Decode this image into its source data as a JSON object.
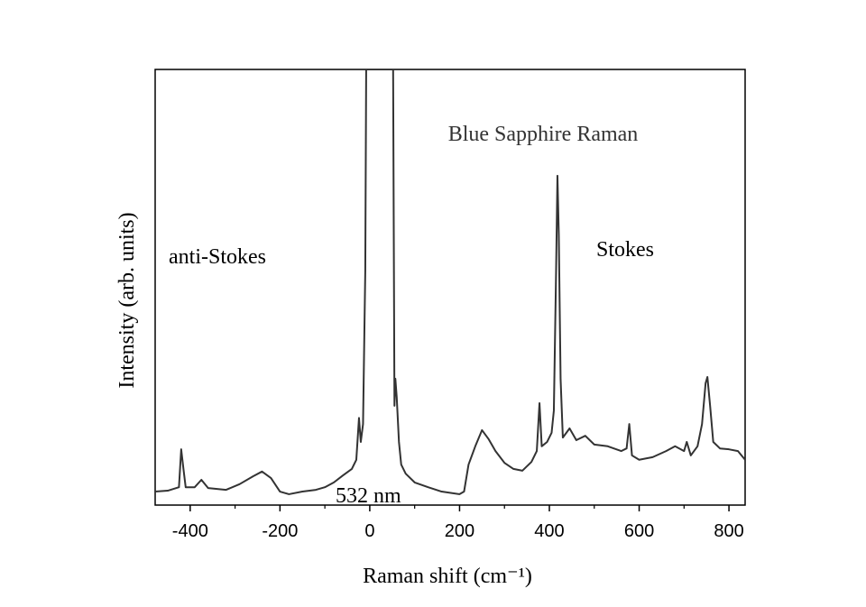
{
  "chart_data": {
    "type": "line",
    "title": "Blue Sapphire Raman",
    "annotations": [
      "anti-Stokes",
      "Stokes",
      "532 nm"
    ],
    "xlabel": "Raman shift (cm⁻¹)",
    "ylabel": "Intensity (arb. units)",
    "xlim": [
      -478,
      836
    ],
    "ylim": [
      0,
      100
    ],
    "xticks": [
      -400,
      -200,
      0,
      200,
      400,
      600,
      800
    ],
    "xminorticks": [
      -300,
      -100,
      100,
      300,
      500,
      700
    ],
    "series": [
      {
        "color": "#333333",
        "x": [
          -478,
          -450,
          -425,
          -420,
          -415,
          -410,
          -390,
          -375,
          -360,
          -320,
          -290,
          -260,
          -240,
          -220,
          -200,
          -180,
          -150,
          -120,
          -100,
          -80,
          -60,
          -40,
          -30,
          -24,
          -20,
          -15,
          -10,
          -8,
          52,
          55,
          57,
          60,
          65,
          70,
          80,
          100,
          130,
          160,
          200,
          210,
          220,
          235,
          250,
          265,
          280,
          300,
          320,
          340,
          360,
          372,
          378,
          383,
          395,
          405,
          410,
          415,
          418,
          421,
          425,
          430,
          445,
          460,
          480,
          500,
          530,
          560,
          572,
          578,
          584,
          600,
          630,
          660,
          680,
          700,
          706,
          715,
          730,
          740,
          748,
          752,
          758,
          765,
          780,
          800,
          820,
          836
        ],
        "values": [
          3.1,
          3.3,
          4.1,
          12.8,
          8.3,
          4.1,
          4.1,
          5.8,
          3.9,
          3.5,
          4.8,
          6.6,
          7.7,
          6.2,
          3.1,
          2.5,
          3.1,
          3.5,
          4.1,
          5.2,
          6.8,
          8.3,
          10.4,
          20.0,
          14.5,
          18.6,
          53.8,
          100,
          100,
          22.8,
          29.0,
          24.8,
          14.5,
          9.3,
          7.2,
          5.2,
          4.1,
          3.1,
          2.5,
          3.1,
          9.3,
          13.5,
          17.2,
          15.1,
          12.4,
          9.7,
          8.3,
          7.9,
          9.9,
          12.4,
          23.4,
          13.5,
          14.5,
          16.6,
          21.7,
          53.8,
          75.6,
          62.1,
          29.0,
          15.5,
          17.6,
          14.9,
          15.9,
          13.9,
          13.5,
          12.4,
          13.0,
          18.6,
          11.4,
          10.4,
          11.0,
          12.4,
          13.5,
          12.4,
          14.5,
          11.4,
          13.5,
          18.6,
          28.0,
          29.4,
          22.8,
          14.5,
          13.0,
          12.8,
          12.4,
          10.4
        ]
      }
    ]
  }
}
